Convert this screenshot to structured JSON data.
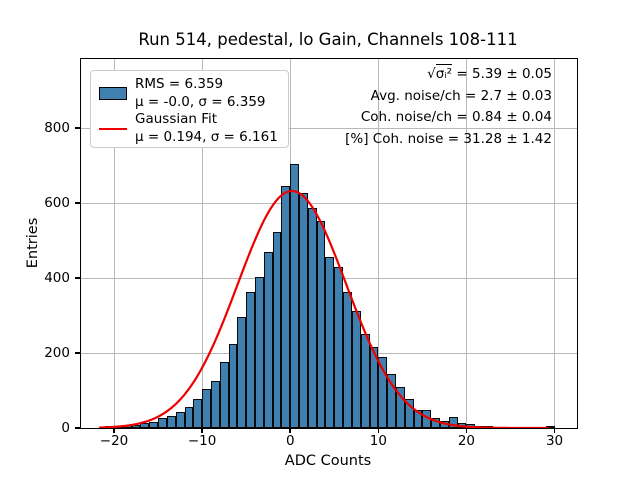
{
  "title": "Run 514, pedestal, lo Gain, Channels 108-111",
  "axes": {
    "xlabel": "ADC Counts",
    "ylabel": "Entries"
  },
  "legend": {
    "hist_line1": "RMS = 6.359",
    "hist_line2": "μ = -0.0, σ = 6.359",
    "fit_line1": "Gaussian Fit",
    "fit_line2": "μ = 0.194, σ = 6.161"
  },
  "annotations": {
    "line1_prefix": "√",
    "line1_radicand": "σᵢ²",
    "line1_rest": " = 5.39 ± 0.05",
    "line2": "Avg. noise/ch = 2.7 ± 0.03",
    "line3": "Coh. noise/ch = 0.84 ± 0.04",
    "line4": "[%] Coh. noise = 31.28 ± 1.42"
  },
  "chart_data": {
    "type": "bar",
    "subtype": "histogram",
    "title": "Run 514, pedestal, lo Gain, Channels 108-111",
    "xlabel": "ADC Counts",
    "ylabel": "Entries",
    "xlim": [
      -23.75,
      32.55
    ],
    "ylim": [
      0,
      984
    ],
    "grid": true,
    "legend_position": "upper left",
    "x_ticks": [
      {
        "v": -20,
        "label": "−20"
      },
      {
        "v": -10,
        "label": "−10"
      },
      {
        "v": 0,
        "label": "0"
      },
      {
        "v": 10,
        "label": "10"
      },
      {
        "v": 20,
        "label": "20"
      },
      {
        "v": 30,
        "label": "30"
      }
    ],
    "y_ticks": [
      {
        "v": 0,
        "label": "0"
      },
      {
        "v": 200,
        "label": "200"
      },
      {
        "v": 400,
        "label": "400"
      },
      {
        "v": 600,
        "label": "600"
      },
      {
        "v": 800,
        "label": "800"
      }
    ],
    "bins": {
      "start": -21,
      "width": 1,
      "counts": [
        2,
        4,
        7,
        9,
        13,
        16,
        26,
        33,
        42,
        55,
        77,
        104,
        126,
        175,
        224,
        295,
        362,
        402,
        469,
        522,
        645,
        703,
        628,
        587,
        551,
        455,
        430,
        362,
        313,
        252,
        215,
        190,
        145,
        109,
        77,
        48,
        48,
        26,
        19,
        29,
        14,
        12,
        5,
        3,
        0,
        0,
        0,
        0,
        0,
        0,
        2
      ]
    },
    "hist_stats": {
      "rms": 6.359,
      "mu": -0.0,
      "sigma": 6.359
    },
    "gaussian_fit": {
      "amplitude": 632,
      "mu": 0.194,
      "sigma": 6.161,
      "x_min": -21.6,
      "x_max": 29.3
    },
    "stats_annotations": {
      "sqrt_sigma_i2": "5.39 ± 0.05",
      "avg_noise_per_ch": "2.7 ± 0.03",
      "coh_noise_per_ch": "0.84 ± 0.04",
      "pct_coh_noise": "31.28 ± 1.42"
    },
    "colors": {
      "bar_fill": "#4080b0",
      "bar_edge": "#0a0a0a",
      "fit_line": "#ee0000",
      "grid": "#b8b8b8"
    }
  }
}
